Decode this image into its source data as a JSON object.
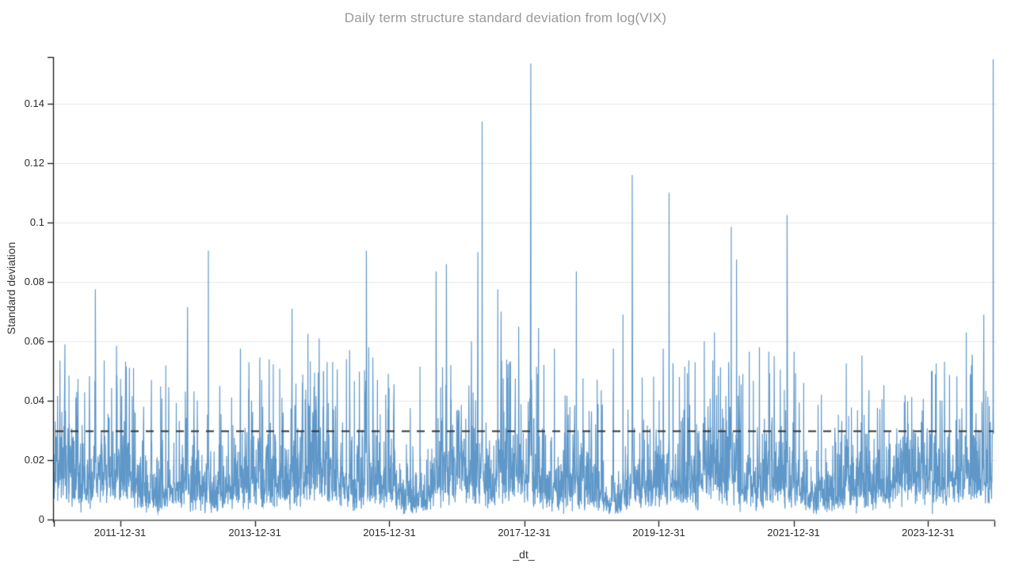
{
  "chart_data": {
    "type": "line",
    "title": "Daily term structure standard deviation from log(VIX)",
    "xlabel": "_dt_",
    "ylabel": "Standard deviation",
    "legend": "none",
    "grid": "horizontal",
    "x_range": [
      "2011-01-06",
      "2024-12-20"
    ],
    "ylim": [
      0,
      0.1557
    ],
    "y_ticks": [
      "0",
      "0.02",
      "0.04",
      "0.06",
      "0.08",
      "0.1",
      "0.12",
      "0.14"
    ],
    "y_tick_values": [
      0,
      0.02,
      0.04,
      0.06,
      0.08,
      0.1,
      0.12,
      0.14
    ],
    "x_ticks": [
      "2011-12-31",
      "2013-12-31",
      "2015-12-31",
      "2017-12-31",
      "2019-12-31",
      "2021-12-31",
      "2023-12-31"
    ],
    "colors": {
      "line": "#5591c5",
      "grid": "#e7e7e7",
      "axis_spine": "#1a1a1a",
      "x_baseline": "#7f7f7f",
      "title": "#999999",
      "labels": "#2b2b2b",
      "reference_line": "#333333"
    },
    "reference_line": {
      "value": 0.03,
      "style": "dashed"
    },
    "baseline_noise": {
      "min": 0.002,
      "median": 0.013,
      "typical_max": 0.04,
      "frequency": "daily trading days"
    },
    "peaks": [
      [
        "2011-02-08",
        0.0535
      ],
      [
        "2011-03-07",
        0.059
      ],
      [
        "2011-05-10",
        0.043
      ],
      [
        "2011-08-19",
        0.0775
      ],
      [
        "2011-10-06",
        0.0535
      ],
      [
        "2011-12-12",
        0.0585
      ],
      [
        "2012-03-06",
        0.0415
      ],
      [
        "2012-06-18",
        0.047
      ],
      [
        "2012-09-20",
        0.0445
      ],
      [
        "2012-12-31",
        0.0715
      ],
      [
        "2013-04-23",
        0.0905
      ],
      [
        "2013-06-24",
        0.045
      ],
      [
        "2013-10-14",
        0.0575
      ],
      [
        "2014-01-27",
        0.0545
      ],
      [
        "2014-05-27",
        0.041
      ],
      [
        "2014-07-21",
        0.071
      ],
      [
        "2014-10-15",
        0.0625
      ],
      [
        "2014-12-15",
        0.061
      ],
      [
        "2015-01-08",
        0.05
      ],
      [
        "2015-05-12",
        0.054
      ],
      [
        "2015-05-29",
        0.057
      ],
      [
        "2015-08-28",
        0.0905
      ],
      [
        "2015-09-10",
        0.058
      ],
      [
        "2015-10-02",
        0.0545
      ],
      [
        "2015-10-27",
        0.047
      ],
      [
        "2015-12-11",
        0.042
      ],
      [
        "2016-01-25",
        0.0455
      ],
      [
        "2016-06-14",
        0.0515
      ],
      [
        "2016-09-09",
        0.0835
      ],
      [
        "2016-11-04",
        0.086
      ],
      [
        "2016-11-28",
        0.052
      ],
      [
        "2017-03-20",
        0.06
      ],
      [
        "2017-04-24",
        0.09
      ],
      [
        "2017-05-17",
        0.134
      ],
      [
        "2017-08-10",
        0.0775
      ],
      [
        "2017-08-28",
        0.07
      ],
      [
        "2017-12-01",
        0.065
      ],
      [
        "2018-02-05",
        0.1535
      ],
      [
        "2018-03-19",
        0.0645
      ],
      [
        "2018-06-13",
        0.0575
      ],
      [
        "2018-10-10",
        0.0835
      ],
      [
        "2018-11-15",
        0.0475
      ],
      [
        "2019-02-22",
        0.0435
      ],
      [
        "2019-04-29",
        0.0575
      ],
      [
        "2019-06-20",
        0.069
      ],
      [
        "2019-08-09",
        0.116
      ],
      [
        "2020-01-24",
        0.0575
      ],
      [
        "2020-02-25",
        0.11
      ],
      [
        "2020-03-18",
        0.05
      ],
      [
        "2020-04-21",
        0.048
      ],
      [
        "2020-06-11",
        0.0535
      ],
      [
        "2020-09-03",
        0.06
      ],
      [
        "2020-10-28",
        0.063
      ],
      [
        "2021-01-27",
        0.0985
      ],
      [
        "2021-02-25",
        0.0875
      ],
      [
        "2021-05-05",
        0.0565
      ],
      [
        "2021-06-29",
        0.058
      ],
      [
        "2021-08-19",
        0.0565
      ],
      [
        "2021-09-17",
        0.055
      ],
      [
        "2021-11-26",
        0.1025
      ],
      [
        "2022-01-03",
        0.0565
      ],
      [
        "2022-02-24",
        0.046
      ],
      [
        "2022-05-31",
        0.042
      ],
      [
        "2022-10-13",
        0.0525
      ],
      [
        "2023-01-06",
        0.0552
      ],
      [
        "2023-04-25",
        0.0405
      ],
      [
        "2023-08-24",
        0.0395
      ],
      [
        "2024-03-15",
        0.04
      ],
      [
        "2024-07-25",
        0.063
      ],
      [
        "2024-08-26",
        0.0555
      ],
      [
        "2024-10-28",
        0.069
      ],
      [
        "2024-12-18",
        0.155
      ]
    ]
  }
}
